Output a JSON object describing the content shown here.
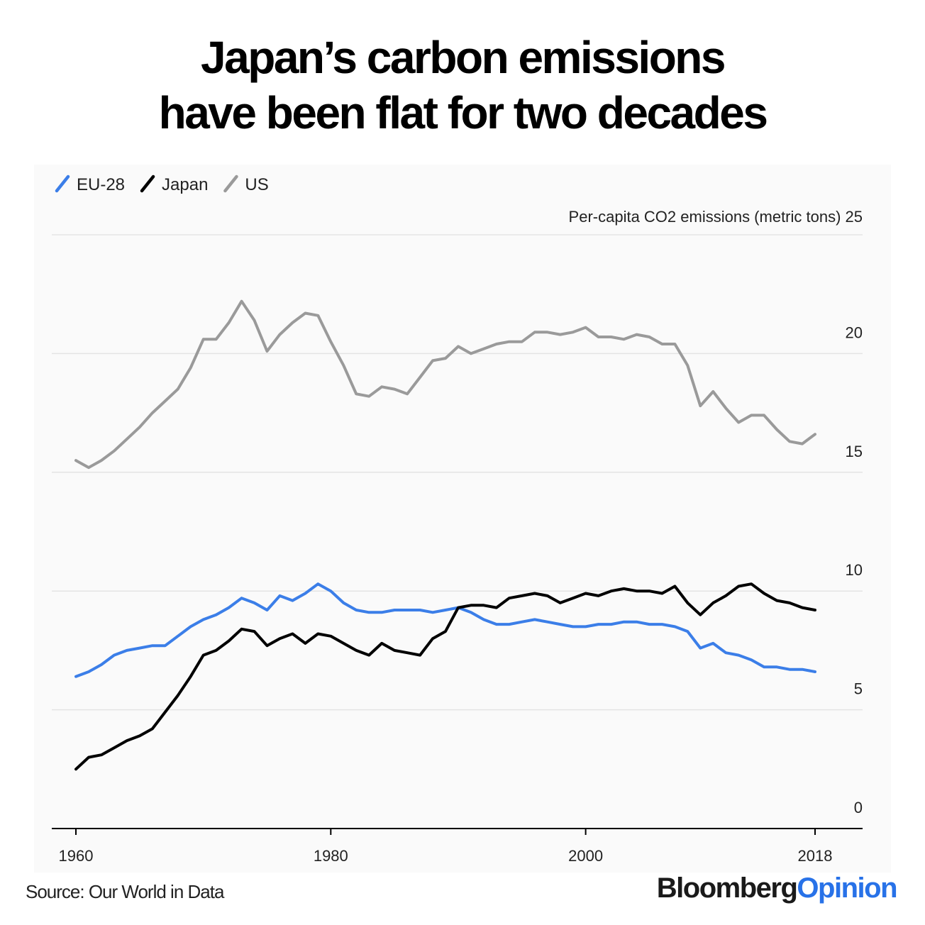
{
  "title_lines": [
    "Japan’s carbon emissions",
    "have been flat for two decades"
  ],
  "source": "Source: Our World in Data",
  "brand": {
    "part1": "Bloomberg",
    "part2": "Opinion"
  },
  "colors": {
    "eu": "#3b7ee8",
    "japan": "#000000",
    "us": "#9a9a9a",
    "brand_accent": "#2872e8"
  },
  "chart_data": {
    "type": "line",
    "ylabel": "Per-capita CO2 emissions (metric tons)",
    "ylim": [
      0,
      25
    ],
    "xlim": [
      1960,
      2018
    ],
    "y_ticks": [
      0,
      5,
      10,
      15,
      20,
      25
    ],
    "x_ticks": [
      1960,
      1980,
      2000,
      2018
    ],
    "grid": true,
    "legend_position": "top-left",
    "x": [
      1960,
      1961,
      1962,
      1963,
      1964,
      1965,
      1966,
      1967,
      1968,
      1969,
      1970,
      1971,
      1972,
      1973,
      1974,
      1975,
      1976,
      1977,
      1978,
      1979,
      1980,
      1981,
      1982,
      1983,
      1984,
      1985,
      1986,
      1987,
      1988,
      1989,
      1990,
      1991,
      1992,
      1993,
      1994,
      1995,
      1996,
      1997,
      1998,
      1999,
      2000,
      2001,
      2002,
      2003,
      2004,
      2005,
      2006,
      2007,
      2008,
      2009,
      2010,
      2011,
      2012,
      2013,
      2014,
      2015,
      2016,
      2017,
      2018
    ],
    "series": [
      {
        "name": "EU-28",
        "color_key": "eu",
        "values": [
          6.4,
          6.6,
          6.9,
          7.3,
          7.5,
          7.6,
          7.7,
          7.7,
          8.1,
          8.5,
          8.8,
          9.0,
          9.3,
          9.7,
          9.5,
          9.2,
          9.8,
          9.6,
          9.9,
          10.3,
          10.0,
          9.5,
          9.2,
          9.1,
          9.1,
          9.2,
          9.2,
          9.2,
          9.1,
          9.2,
          9.3,
          9.1,
          8.8,
          8.6,
          8.6,
          8.7,
          8.8,
          8.7,
          8.6,
          8.5,
          8.5,
          8.6,
          8.6,
          8.7,
          8.7,
          8.6,
          8.6,
          8.5,
          8.3,
          7.6,
          7.8,
          7.4,
          7.3,
          7.1,
          6.8,
          6.8,
          6.7,
          6.7,
          6.6
        ]
      },
      {
        "name": "Japan",
        "color_key": "japan",
        "values": [
          2.5,
          3.0,
          3.1,
          3.4,
          3.7,
          3.9,
          4.2,
          4.9,
          5.6,
          6.4,
          7.3,
          7.5,
          7.9,
          8.4,
          8.3,
          7.7,
          8.0,
          8.2,
          7.8,
          8.2,
          8.1,
          7.8,
          7.5,
          7.3,
          7.8,
          7.5,
          7.4,
          7.3,
          8.0,
          8.3,
          9.3,
          9.4,
          9.4,
          9.3,
          9.7,
          9.8,
          9.9,
          9.8,
          9.5,
          9.7,
          9.9,
          9.8,
          10.0,
          10.1,
          10.0,
          10.0,
          9.9,
          10.2,
          9.5,
          9.0,
          9.5,
          9.8,
          10.2,
          10.3,
          9.9,
          9.6,
          9.5,
          9.3,
          9.2
        ]
      },
      {
        "name": "US",
        "color_key": "us",
        "values": [
          15.5,
          15.2,
          15.5,
          15.9,
          16.4,
          16.9,
          17.5,
          18.0,
          18.5,
          19.4,
          20.6,
          20.6,
          21.3,
          22.2,
          21.4,
          20.1,
          20.8,
          21.3,
          21.7,
          21.6,
          20.5,
          19.5,
          18.3,
          18.2,
          18.6,
          18.5,
          18.3,
          19.0,
          19.7,
          19.8,
          20.3,
          20.0,
          20.2,
          20.4,
          20.5,
          20.5,
          20.9,
          20.9,
          20.8,
          20.9,
          21.1,
          20.7,
          20.7,
          20.6,
          20.8,
          20.7,
          20.4,
          20.4,
          19.5,
          17.8,
          18.4,
          17.7,
          17.1,
          17.4,
          17.4,
          16.8,
          16.3,
          16.2,
          16.6
        ]
      }
    ]
  }
}
